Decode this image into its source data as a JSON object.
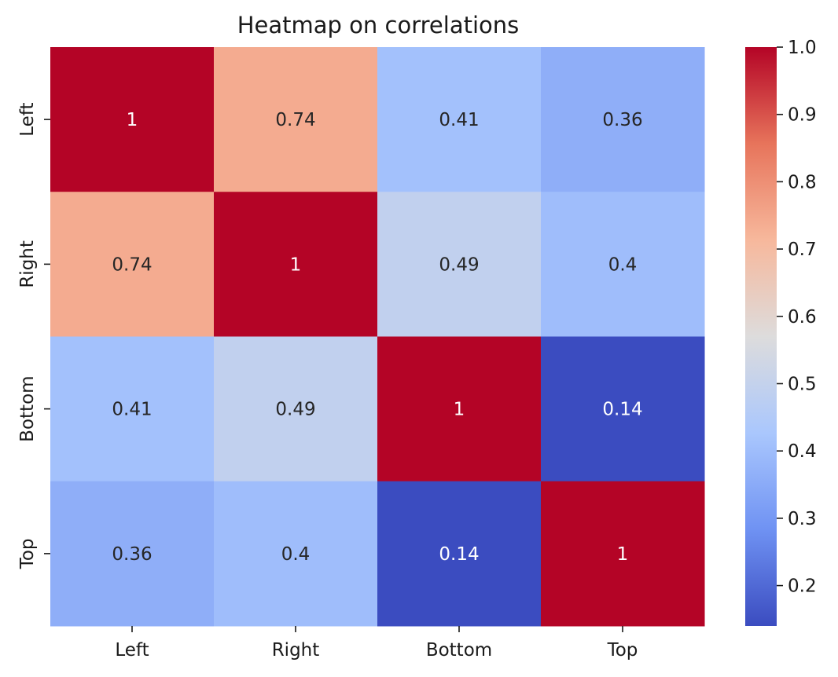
{
  "chart_data": {
    "type": "heatmap",
    "title": "Heatmap on correlations",
    "xlabel": "",
    "ylabel": "",
    "x_categories": [
      "Left",
      "Right",
      "Bottom",
      "Top"
    ],
    "y_categories": [
      "Left",
      "Right",
      "Bottom",
      "Top"
    ],
    "values": [
      [
        1,
        0.74,
        0.41,
        0.36
      ],
      [
        0.74,
        1,
        0.49,
        0.4
      ],
      [
        0.41,
        0.49,
        1,
        0.14
      ],
      [
        0.36,
        0.4,
        0.14,
        1
      ]
    ],
    "annotations": [
      [
        "1",
        "0.74",
        "0.41",
        "0.36"
      ],
      [
        "0.74",
        "1",
        "0.49",
        "0.4"
      ],
      [
        "0.41",
        "0.49",
        "1",
        "0.14"
      ],
      [
        "0.36",
        "0.4",
        "0.14",
        "1"
      ]
    ],
    "colormap": "coolwarm",
    "colormap_stops": [
      "#3b4cc0",
      "#6f92f3",
      "#aac7fd",
      "#dddcdc",
      "#f7b89c",
      "#e7745b",
      "#b40426"
    ],
    "colorbar": {
      "range": [
        0.14,
        1.0
      ],
      "ticks": [
        0.2,
        0.3,
        0.4,
        0.5,
        0.6,
        0.7,
        0.8,
        0.9,
        1.0
      ],
      "tick_labels": [
        "0.2",
        "0.3",
        "0.4",
        "0.5",
        "0.6",
        "0.7",
        "0.8",
        "0.9",
        "1.0"
      ]
    },
    "text_colors": {
      "on_dark": "#ffffff",
      "on_light": "#262626"
    },
    "grid": false
  }
}
